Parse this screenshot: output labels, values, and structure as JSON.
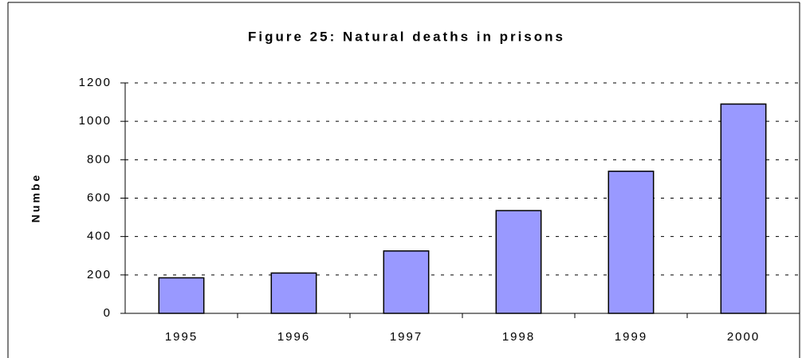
{
  "chart_data": {
    "type": "bar",
    "title": "Figure 25:  Natural deaths in prisons",
    "y_label": "Numbe",
    "categories": [
      "1995",
      "1996",
      "1997",
      "1998",
      "1999",
      "2000"
    ],
    "values": [
      185,
      210,
      325,
      535,
      740,
      1090
    ],
    "color": "#9999ff",
    "ylim": [
      0,
      1200
    ],
    "yticks": [
      0,
      200,
      400,
      600,
      800,
      1000,
      1200
    ],
    "grid": true
  }
}
